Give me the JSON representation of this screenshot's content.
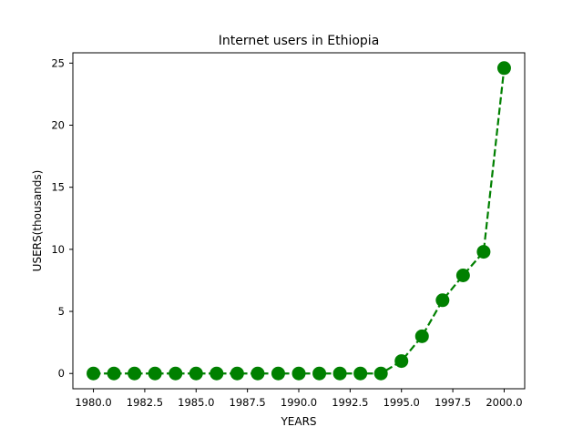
{
  "chart_data": {
    "type": "line",
    "title": "Internet users in Ethiopia",
    "xlabel": "YEARS",
    "ylabel": "USERS(thousands)",
    "x": [
      1980,
      1981,
      1982,
      1983,
      1984,
      1985,
      1986,
      1987,
      1988,
      1989,
      1990,
      1991,
      1992,
      1993,
      1994,
      1995,
      1996,
      1997,
      1998,
      1999,
      2000
    ],
    "series": [
      {
        "values": [
          0,
          0,
          0,
          0,
          0,
          0,
          0,
          0,
          0,
          0,
          0,
          0,
          0,
          0,
          0,
          1,
          3,
          5.9,
          7.9,
          9.8,
          24.6
        ],
        "color": "#008000",
        "line_style": "dashed",
        "marker": "circle"
      }
    ],
    "xlim": [
      1979,
      2001
    ],
    "ylim": [
      -1.23,
      25.83
    ],
    "x_ticks": [
      1980.0,
      1982.5,
      1985.0,
      1987.5,
      1990.0,
      1992.5,
      1995.0,
      1997.5,
      2000.0
    ],
    "x_tick_labels": [
      "1980.0",
      "1982.5",
      "1985.0",
      "1987.5",
      "1990.0",
      "1992.5",
      "1995.0",
      "1997.5",
      "2000.0"
    ],
    "y_ticks": [
      0,
      5,
      10,
      15,
      20,
      25
    ],
    "y_tick_labels": [
      "0",
      "5",
      "10",
      "15",
      "20",
      "25"
    ],
    "grid": false,
    "legend": "none"
  }
}
